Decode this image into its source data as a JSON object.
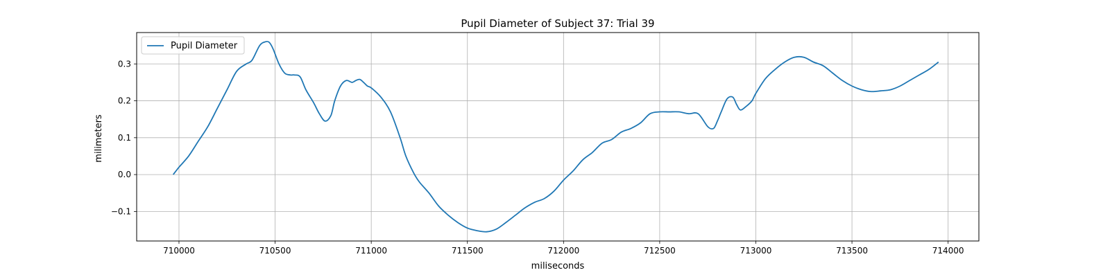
{
  "chart_data": {
    "type": "line",
    "title": "Pupil Diameter of Subject 37: Trial 39",
    "xlabel": "miliseconds",
    "ylabel": "milimeters",
    "xlim": [
      709780,
      714160
    ],
    "ylim": [
      -0.18,
      0.385
    ],
    "xticks": [
      710000,
      710500,
      711000,
      711500,
      712000,
      712500,
      713000,
      713500,
      714000
    ],
    "yticks": [
      -0.1,
      0.0,
      0.1,
      0.2,
      0.3
    ],
    "ytick_labels": [
      "−0.1",
      "0.0",
      "0.1",
      "0.2",
      "0.3"
    ],
    "grid": true,
    "legend_position": "upper-left",
    "series": [
      {
        "name": "Pupil Diameter",
        "color": "#1f77b4",
        "x": [
          709970,
          710000,
          710050,
          710100,
          710150,
          710200,
          710250,
          710300,
          710350,
          710380,
          710420,
          710450,
          710470,
          710490,
          710520,
          710550,
          710580,
          710600,
          710630,
          710660,
          710700,
          710730,
          710760,
          710790,
          710810,
          710840,
          710870,
          710900,
          710920,
          710940,
          710960,
          710980,
          711000,
          711050,
          711100,
          711150,
          711180,
          711220,
          711250,
          711300,
          711350,
          711400,
          711450,
          711500,
          711550,
          711600,
          711650,
          711700,
          711750,
          711800,
          711850,
          711900,
          711950,
          712000,
          712050,
          712100,
          712150,
          712200,
          712250,
          712300,
          712350,
          712400,
          712450,
          712500,
          712550,
          712600,
          712650,
          712700,
          712750,
          712780,
          712800,
          712820,
          712850,
          712880,
          712900,
          712920,
          712950,
          712980,
          713000,
          713050,
          713100,
          713150,
          713200,
          713250,
          713300,
          713350,
          713400,
          713450,
          713500,
          713550,
          713600,
          713650,
          713700,
          713750,
          713800,
          713850,
          713900,
          713950
        ],
        "y": [
          0.0,
          0.02,
          0.05,
          0.09,
          0.13,
          0.18,
          0.23,
          0.28,
          0.3,
          0.31,
          0.35,
          0.36,
          0.358,
          0.34,
          0.3,
          0.275,
          0.27,
          0.27,
          0.265,
          0.23,
          0.195,
          0.165,
          0.145,
          0.16,
          0.2,
          0.24,
          0.255,
          0.25,
          0.255,
          0.258,
          0.25,
          0.24,
          0.235,
          0.21,
          0.17,
          0.1,
          0.05,
          0.005,
          -0.02,
          -0.05,
          -0.085,
          -0.11,
          -0.13,
          -0.145,
          -0.152,
          -0.155,
          -0.148,
          -0.13,
          -0.11,
          -0.09,
          -0.075,
          -0.065,
          -0.045,
          -0.015,
          0.01,
          0.04,
          0.06,
          0.085,
          0.095,
          0.115,
          0.125,
          0.14,
          0.165,
          0.17,
          0.17,
          0.17,
          0.165,
          0.165,
          0.13,
          0.125,
          0.145,
          0.17,
          0.205,
          0.21,
          0.19,
          0.175,
          0.185,
          0.2,
          0.22,
          0.26,
          0.285,
          0.305,
          0.318,
          0.318,
          0.305,
          0.295,
          0.275,
          0.255,
          0.24,
          0.23,
          0.225,
          0.227,
          0.23,
          0.24,
          0.255,
          0.27,
          0.285,
          0.305
        ]
      }
    ]
  }
}
